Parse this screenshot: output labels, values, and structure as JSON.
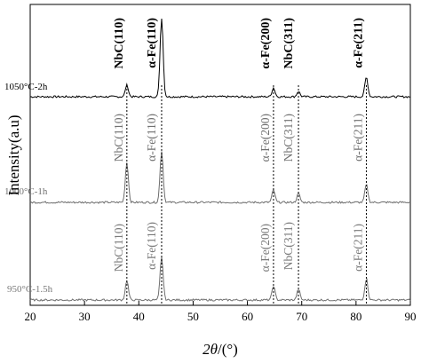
{
  "chart_data": {
    "type": "line",
    "xlabel_prefix": "2",
    "xlabel_theta": "θ",
    "xlabel_suffix": "/(°)",
    "ylabel": "Intensity(a.u)",
    "xlim": [
      20,
      90
    ],
    "xticks": [
      "20",
      "30",
      "40",
      "50",
      "60",
      "70",
      "80",
      "90"
    ],
    "peak_positions": [
      37.8,
      44.2,
      64.8,
      69.4,
      81.9
    ],
    "series": [
      {
        "name": "1050°C-2h",
        "color": "#000000",
        "label_color": "#000000",
        "label_bold": true,
        "peaks": [
          {
            "x": 37.8,
            "height": 13,
            "label": "NbC(110)"
          },
          {
            "x": 44.2,
            "height": 89,
            "label": "α-Fe(110)"
          },
          {
            "x": 64.8,
            "height": 10,
            "label": "α-Fe(200)"
          },
          {
            "x": 69.4,
            "height": 6,
            "label": "NbC(311)"
          },
          {
            "x": 81.9,
            "height": 22,
            "label": "α-Fe(211)"
          }
        ]
      },
      {
        "name": "1000°C-1h",
        "color": "#6e6e6e",
        "label_color": "#707070",
        "label_bold": false,
        "peaks": [
          {
            "x": 37.8,
            "height": 45,
            "label": "NbC(110)"
          },
          {
            "x": 44.2,
            "height": 58,
            "label": "α-Fe(110)"
          },
          {
            "x": 64.8,
            "height": 14,
            "label": "α-Fe(200)"
          },
          {
            "x": 69.4,
            "height": 10,
            "label": "NbC(311)"
          },
          {
            "x": 81.9,
            "height": 20,
            "label": "α-Fe(211)"
          }
        ]
      },
      {
        "name": "950°C-1.5h",
        "color": "#707070",
        "label_color": "#7a7a7a",
        "label_bold": false,
        "peaks": [
          {
            "x": 37.8,
            "height": 22,
            "label": "NbC(110)"
          },
          {
            "x": 44.2,
            "height": 48,
            "label": "α-Fe(110)"
          },
          {
            "x": 64.8,
            "height": 16,
            "label": "α-Fe(200)"
          },
          {
            "x": 69.4,
            "height": 12,
            "label": "NbC(311)"
          },
          {
            "x": 81.9,
            "height": 24,
            "label": "α-Fe(211)"
          }
        ]
      }
    ]
  }
}
